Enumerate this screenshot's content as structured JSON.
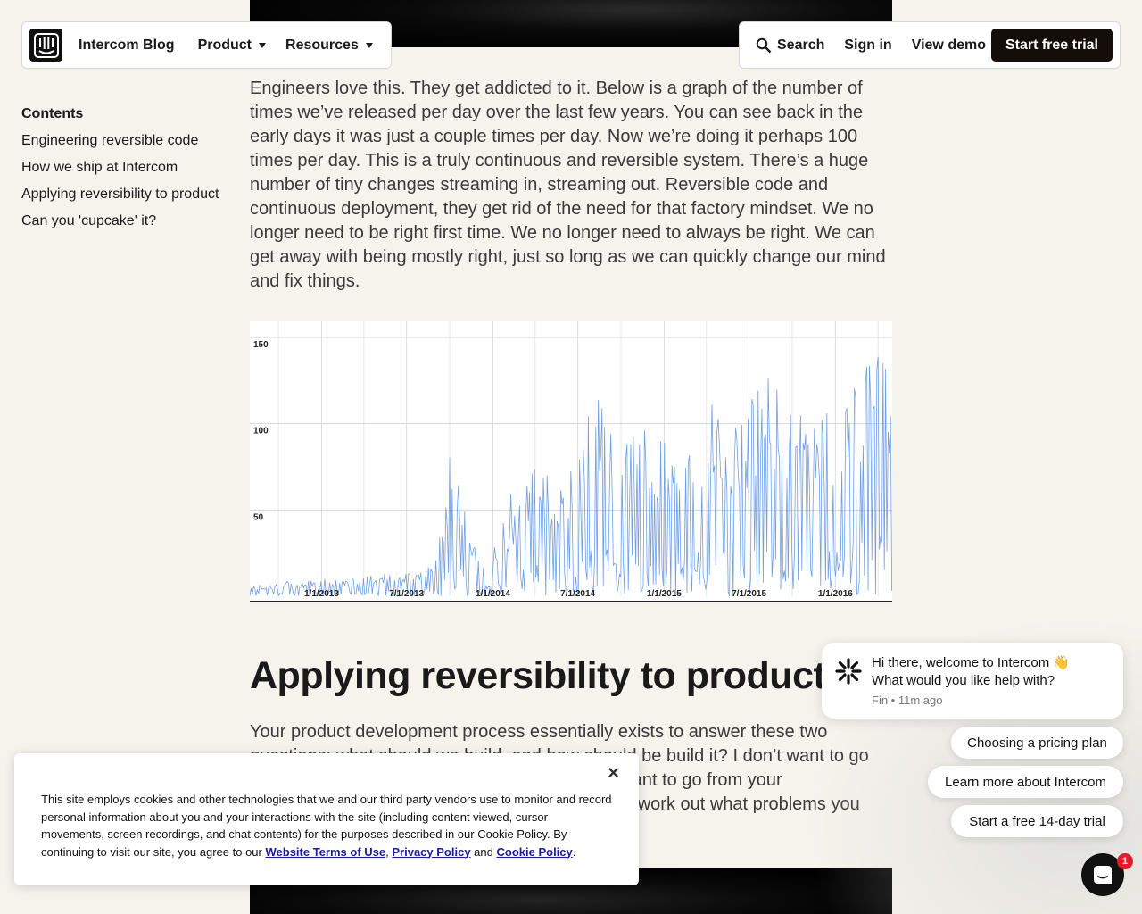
{
  "nav": {
    "brand": "Intercom Blog",
    "product": "Product",
    "resources": "Resources",
    "search": "Search",
    "sign_in": "Sign in",
    "view_demo": "View demo",
    "start_trial": "Start free trial"
  },
  "toc": {
    "title": "Contents",
    "items": [
      "Engineering reversible code",
      "How we ship at Intercom",
      "Applying reversibility to product",
      "Can you 'cupcake' it?"
    ]
  },
  "article": {
    "paragraph_1": "Engineers love this. They get addicted to it. Below is a graph of the number of times we’ve released per day over the last few years. You can see back in the early days it was just a couple times per day. Now we’re doing it perhaps 100 times per day. This is a truly continuous and reversible system. There’s a huge number of tiny changes streaming in, streaming out. Reversible code and continuous deployment, they get rid of the need for that factory mindset. We no longer need to be right first time. We no longer need to always be right. We can get away with being mostly right, just so long as we can quickly change our mind and fix things.",
    "heading": "Applying reversibility to product",
    "paragraph_2": "Your product development process essentially exists to answer these two questions: what should we build, and how should be build it? I don’t want to go into too much detail on this, but effectively you want to go from your understanding of customers and their needs and work out what problems you can solve."
  },
  "chart_data": {
    "type": "line",
    "title": "",
    "xlabel": "",
    "ylabel": "",
    "ylim": [
      0,
      150
    ],
    "yticks": [
      50,
      100,
      150
    ],
    "x_tick_labels": [
      "1/1/2013",
      "7/1/2013",
      "1/1/2014",
      "7/1/2014",
      "1/1/2015",
      "7/1/2015",
      "1/1/2016"
    ],
    "grid": true,
    "color": "#6f9fe6",
    "series": [
      {
        "x": [
          "2012-08",
          "2012-11",
          "2013-01",
          "2013-04",
          "2013-07",
          "2013-09",
          "2013-10",
          "2013-12",
          "2014-02",
          "2014-04",
          "2014-06",
          "2014-07",
          "2014-08",
          "2014-10",
          "2014-12",
          "2015-02",
          "2015-04",
          "2015-06",
          "2015-08",
          "2015-10",
          "2015-12",
          "2016-02",
          "2016-04",
          "2016-05"
        ],
        "values": [
          6,
          8,
          10,
          12,
          14,
          20,
          85,
          25,
          40,
          80,
          60,
          75,
          125,
          95,
          100,
          80,
          115,
          100,
          130,
          110,
          105,
          120,
          155,
          120
        ]
      }
    ]
  },
  "cookie": {
    "close": "×",
    "text": "This site employs cookies and other technologies that we and our third party vendors use to monitor and record personal information about you and your interactions with the site (including content viewed, cursor movements, screen recordings, and chat contents) for the purposes described in our Cookie Policy. By continuing to visit our site, you agree to our",
    "terms": "Website Terms of Use",
    "sep": ",",
    "privacy": "Privacy Policy",
    "and": "and",
    "cookie_policy": "Cookie Policy",
    "end": "."
  },
  "messenger": {
    "greeting_line1": "Hi there, welcome to Intercom 👋",
    "greeting_line2": "What would you like help with?",
    "meta": "Fin • 11m ago",
    "quick_replies": [
      "Choosing a pricing plan",
      "Learn more about Intercom",
      "Start a free 14-day trial"
    ],
    "badge_count": "1"
  }
}
